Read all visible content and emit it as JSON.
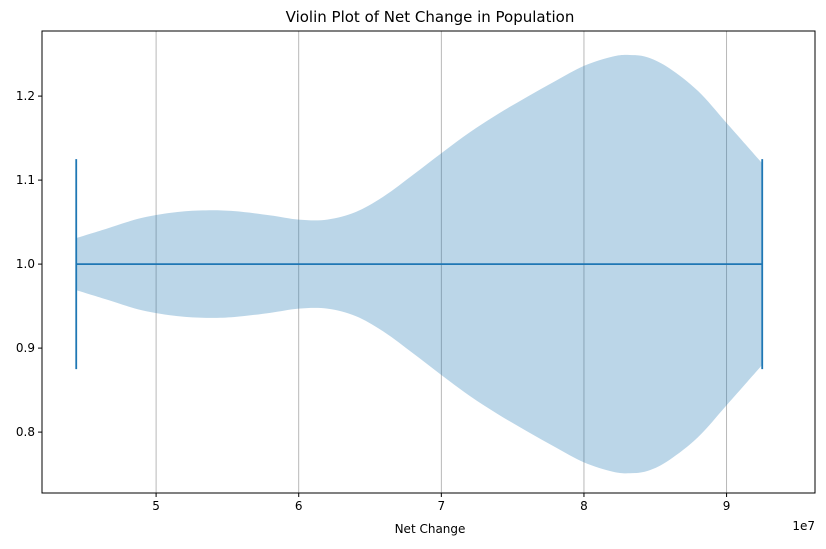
{
  "chart_data": {
    "type": "violin",
    "title": "Violin Plot of Net Change in Population",
    "xlabel": "Net Change",
    "ylabel": "",
    "x_offset_label": "1e7",
    "x_scale_multiplier": 10000000,
    "xlim": [
      42000000,
      96200000
    ],
    "ylim": [
      0.7275,
      1.2775
    ],
    "orientation": "horizontal",
    "position": 1.0,
    "x_ticks": [
      50000000,
      60000000,
      70000000,
      80000000,
      90000000
    ],
    "x_tick_labels": [
      "5",
      "6",
      "7",
      "8",
      "9"
    ],
    "y_ticks": [
      0.8,
      0.9,
      1.0,
      1.1,
      1.2
    ],
    "y_tick_labels": [
      "0.8",
      "0.9",
      "1.0",
      "1.1",
      "1.2"
    ],
    "grid": {
      "x": true,
      "y": false
    },
    "data_min": 44400000,
    "data_max": 92500000,
    "cap_half_width": 0.125,
    "density_profile": {
      "x": [
        44400000,
        46500000,
        49000000,
        51500000,
        53500000,
        55500000,
        58000000,
        60000000,
        62000000,
        64000000,
        66000000,
        68000000,
        70000000,
        72000000,
        74000000,
        76000000,
        78000000,
        80000000,
        82000000,
        83200000,
        84500000,
        86000000,
        88000000,
        90000000,
        92500000
      ],
      "half_width": [
        0.031,
        0.042,
        0.055,
        0.062,
        0.064,
        0.063,
        0.058,
        0.053,
        0.053,
        0.062,
        0.081,
        0.106,
        0.132,
        0.157,
        0.179,
        0.199,
        0.218,
        0.236,
        0.247,
        0.249,
        0.246,
        0.233,
        0.206,
        0.168,
        0.12
      ]
    },
    "colors": {
      "body": "#1f77b4",
      "body_opacity": 0.3,
      "lines": "#1f77b4",
      "grid": "#b0b0b0",
      "axes": "#000000"
    }
  }
}
